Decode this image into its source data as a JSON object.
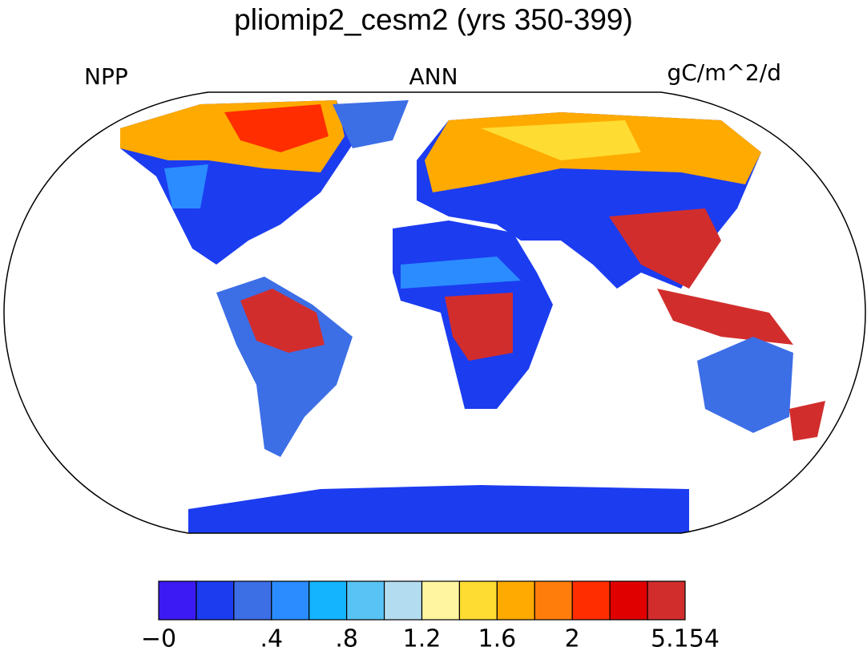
{
  "title": "pliomip2_cesm2 (yrs 350-399)",
  "left_label": "NPP",
  "center_label": "ANN",
  "right_label": "gC/m^2/d",
  "colorbar": {
    "colors": [
      "#3c1af3",
      "#1c3cf0",
      "#3c6ee6",
      "#2a8cff",
      "#14b4ff",
      "#5ac3f5",
      "#b4dcf0",
      "#fff5a0",
      "#ffdc32",
      "#ffaa00",
      "#ff7d0a",
      "#ff2d00",
      "#e10000",
      "#d22d2d"
    ],
    "labels": [
      "−0",
      null,
      null,
      ".4",
      null,
      ".8",
      null,
      "1.2",
      null,
      "1.6",
      null,
      "2",
      null,
      null,
      "5.154"
    ]
  }
}
